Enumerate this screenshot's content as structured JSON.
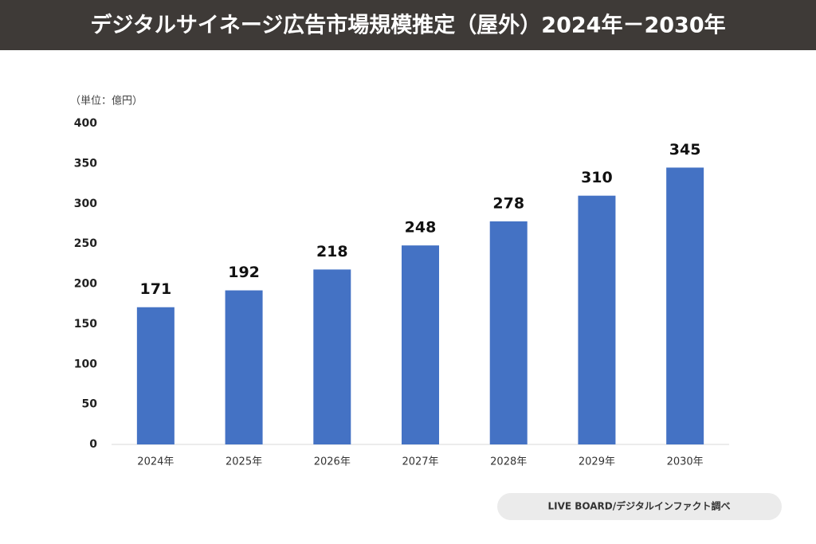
{
  "chart_data": {
    "type": "bar",
    "title": "デジタルサイネージ広告市場規模推定（屋外）2024年－2030年",
    "unit_label": "（単位：億円）",
    "categories": [
      "2024年",
      "2025年",
      "2026年",
      "2027年",
      "2028年",
      "2029年",
      "2030年"
    ],
    "values": [
      171,
      192,
      218,
      248,
      278,
      310,
      345
    ],
    "color": "#4472c4",
    "ylim": [
      0,
      400
    ],
    "yticks": [
      0,
      50,
      100,
      150,
      200,
      250,
      300,
      350,
      400
    ],
    "grid": false,
    "source": "LIVE BOARD/デジタルインファクト調べ"
  }
}
